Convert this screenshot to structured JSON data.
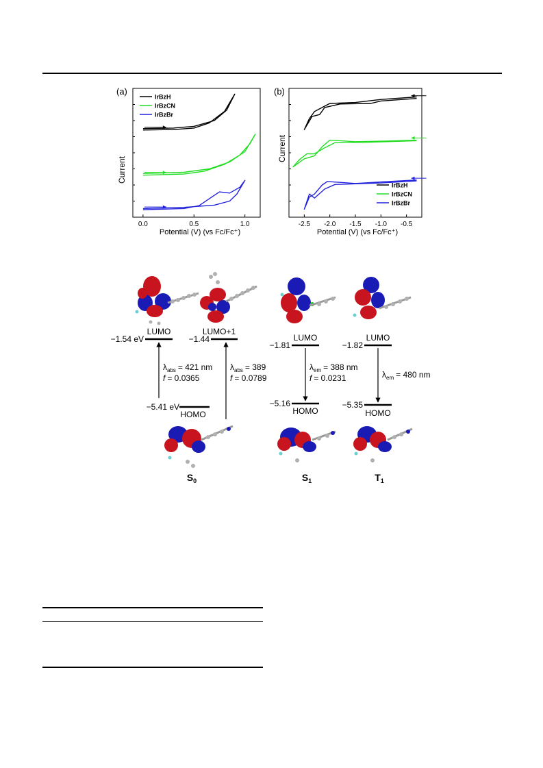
{
  "chart_data": [
    {
      "type": "line",
      "panel_label": "(a)",
      "xlabel": "Potential (V) (vs Fc/Fc⁺)",
      "ylabel": "Current",
      "xlim": [
        -0.1,
        1.15
      ],
      "x_ticks": [
        "0.0",
        "0.5",
        "1.0"
      ],
      "legend_position": "top-left",
      "series": [
        {
          "name": "IrBzH",
          "color": "#000000",
          "forward": [
            [
              0.0,
              0.38
            ],
            [
              0.3,
              0.42
            ],
            [
              0.5,
              0.55
            ],
            [
              0.65,
              1.0
            ],
            [
              0.8,
              2.0
            ],
            [
              0.9,
              3.5
            ]
          ],
          "reverse": [
            [
              0.9,
              3.5
            ],
            [
              0.82,
              2.1
            ],
            [
              0.7,
              1.2
            ],
            [
              0.5,
              0.7
            ],
            [
              0.3,
              0.55
            ],
            [
              0.0,
              0.5
            ]
          ]
        },
        {
          "name": "IrBzCN",
          "color": "#22dd22",
          "forward": [
            [
              0.0,
              -3.55
            ],
            [
              0.4,
              -3.45
            ],
            [
              0.6,
              -3.2
            ],
            [
              0.8,
              -2.6
            ],
            [
              0.95,
              -1.8
            ],
            [
              1.05,
              -0.8
            ],
            [
              1.1,
              0.0
            ]
          ],
          "reverse": [
            [
              1.1,
              0.0
            ],
            [
              1.0,
              -1.5
            ],
            [
              0.85,
              -2.4
            ],
            [
              0.65,
              -3.0
            ],
            [
              0.4,
              -3.3
            ],
            [
              0.0,
              -3.4
            ]
          ]
        },
        {
          "name": "IrBzBr",
          "color": "#2222dd",
          "forward": [
            [
              0.0,
              -6.55
            ],
            [
              0.4,
              -6.45
            ],
            [
              0.55,
              -6.2
            ],
            [
              0.65,
              -5.6
            ],
            [
              0.75,
              -5.0
            ],
            [
              0.85,
              -5.1
            ],
            [
              0.95,
              -4.6
            ],
            [
              1.0,
              -4.0
            ]
          ],
          "reverse": [
            [
              1.0,
              -4.0
            ],
            [
              0.92,
              -5.2
            ],
            [
              0.85,
              -5.8
            ],
            [
              0.7,
              -6.15
            ],
            [
              0.4,
              -6.35
            ],
            [
              0.0,
              -6.45
            ]
          ]
        }
      ]
    },
    {
      "type": "line",
      "panel_label": "(b)",
      "xlabel": "Potential (V) (vs Fc/Fc⁺)",
      "ylabel": "Current",
      "xlim": [
        -2.8,
        -0.2
      ],
      "x_ticks": [
        "-2.5",
        "-2.0",
        "-1.5",
        "-1.0",
        "-0.5"
      ],
      "legend_position": "bottom-right",
      "series": [
        {
          "name": "IrBzH",
          "color": "#000000",
          "forward": [
            [
              -0.3,
              0.6
            ],
            [
              -1.0,
              0.35
            ],
            [
              -1.2,
              0.1
            ],
            [
              -1.8,
              0.05
            ],
            [
              -2.1,
              -0.3
            ],
            [
              -2.2,
              -1.0
            ],
            [
              -2.35,
              -1.2
            ],
            [
              -2.5,
              -2.5
            ]
          ],
          "reverse": [
            [
              -2.5,
              -2.5
            ],
            [
              -2.4,
              -1.4
            ],
            [
              -2.3,
              -0.7
            ],
            [
              -2.15,
              -0.3
            ],
            [
              -2.0,
              0.1
            ],
            [
              -1.5,
              0.2
            ],
            [
              -1.0,
              0.5
            ],
            [
              -0.3,
              0.75
            ]
          ]
        },
        {
          "name": "IrBzCN",
          "color": "#22dd22",
          "forward": [
            [
              -0.3,
              -3.6
            ],
            [
              -1.2,
              -3.75
            ],
            [
              -1.9,
              -3.8
            ],
            [
              -2.1,
              -4.3
            ],
            [
              -2.3,
              -4.9
            ],
            [
              -2.45,
              -4.9
            ],
            [
              -2.6,
              -5.5
            ],
            [
              -2.72,
              -6.2
            ]
          ],
          "reverse": [
            [
              -2.72,
              -6.2
            ],
            [
              -2.5,
              -5.4
            ],
            [
              -2.3,
              -5.1
            ],
            [
              -2.15,
              -4.2
            ],
            [
              -2.0,
              -3.55
            ],
            [
              -1.5,
              -3.7
            ],
            [
              -1.0,
              -3.65
            ],
            [
              -0.3,
              -3.55
            ]
          ]
        },
        {
          "name": "IrBzBr",
          "color": "#2222dd",
          "forward": [
            [
              -0.3,
              -7.6
            ],
            [
              -1.0,
              -7.8
            ],
            [
              -1.9,
              -7.95
            ],
            [
              -2.1,
              -8.4
            ],
            [
              -2.3,
              -9.3
            ],
            [
              -2.4,
              -8.9
            ],
            [
              -2.5,
              -10.4
            ]
          ],
          "reverse": [
            [
              -2.5,
              -10.4
            ],
            [
              -2.4,
              -9.2
            ],
            [
              -2.3,
              -8.9
            ],
            [
              -2.15,
              -8.0
            ],
            [
              -2.05,
              -7.65
            ],
            [
              -1.5,
              -7.85
            ],
            [
              -1.0,
              -7.7
            ],
            [
              -0.3,
              -7.5
            ]
          ]
        }
      ]
    }
  ],
  "orbital_diagram": {
    "s0": {
      "lumo_energy": "−1.54 eV",
      "lumo1_energy": "−1.44",
      "homo_energy": "−5.41 eV",
      "lumo_label": "LUMO",
      "lumo1_label": "LUMO+1",
      "homo_label": "HOMO",
      "transition1_lambda": "= 421 nm",
      "transition1_f": "= 0.0365",
      "transition2_lambda": "= 389",
      "transition2_f": "= 0.0789",
      "state_label": "S",
      "state_sub": "0"
    },
    "s1": {
      "lumo_energy": "−1.81",
      "homo_energy": "−5.16",
      "lumo_label": "LUMO",
      "homo_label": "HOMO",
      "transition_lambda": "= 388 nm",
      "transition_f": "= 0.0231",
      "state_label": "S",
      "state_sub": "1"
    },
    "t1": {
      "lumo_energy": "−1.82",
      "homo_energy": "−5.35",
      "lumo_label": "LUMO",
      "homo_label": "HOMO",
      "transition_lambda": "= 480 nm",
      "state_label": "T",
      "state_sub": "1"
    },
    "lambda_symbol": "λ",
    "abs_sub": "abs",
    "em_sub": "em",
    "f_symbol": "f",
    "colors": {
      "positive_lobe": "#c8141e",
      "negative_lobe": "#1a1ab4",
      "atom": "#b0b0b0"
    }
  }
}
